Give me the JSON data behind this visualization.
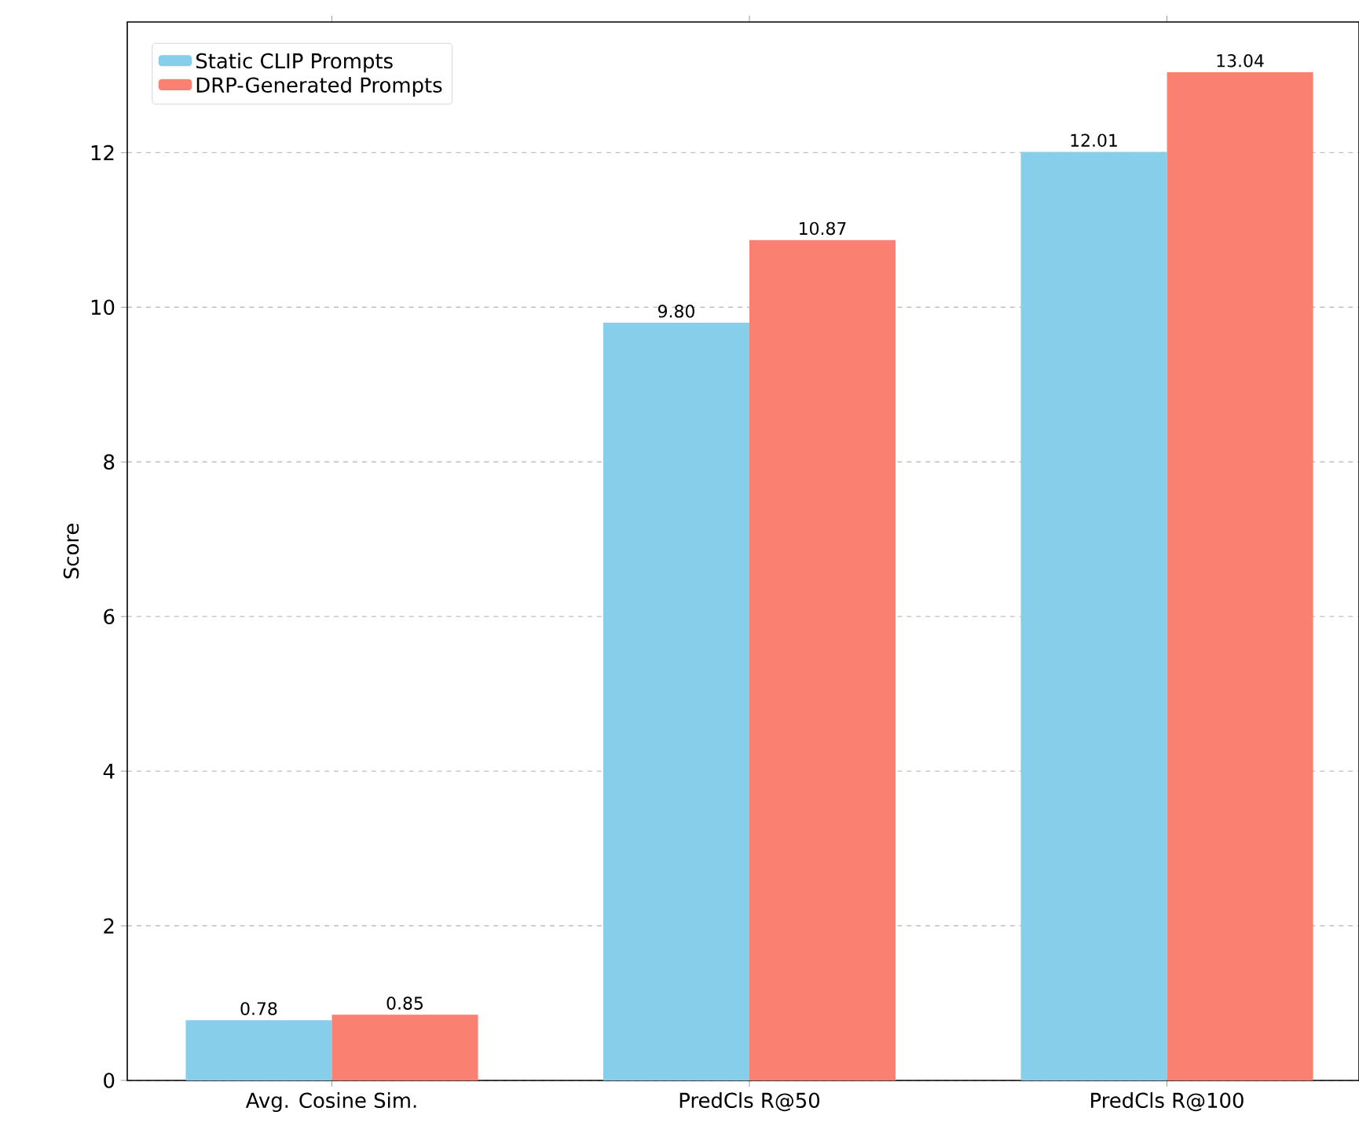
{
  "chart_data": {
    "type": "bar",
    "ylabel": "Score",
    "categories": [
      "Avg. Cosine Sim.",
      "PredCls R@50",
      "PredCls R@100"
    ],
    "series": [
      {
        "name": "Static CLIP Prompts",
        "color": "#87ceeb",
        "values": [
          0.78,
          9.8,
          12.01
        ],
        "value_labels": [
          "0.78",
          "9.80",
          "12.01"
        ]
      },
      {
        "name": "DRP-Generated Prompts",
        "color": "#fa8072",
        "values": [
          0.85,
          10.87,
          13.04
        ],
        "value_labels": [
          "0.85",
          "10.87",
          "13.04"
        ]
      }
    ],
    "ylim": [
      0,
      13.69
    ],
    "yticks": [
      0,
      2,
      4,
      6,
      8,
      10,
      12
    ],
    "grid": "y",
    "legend": "top left"
  }
}
